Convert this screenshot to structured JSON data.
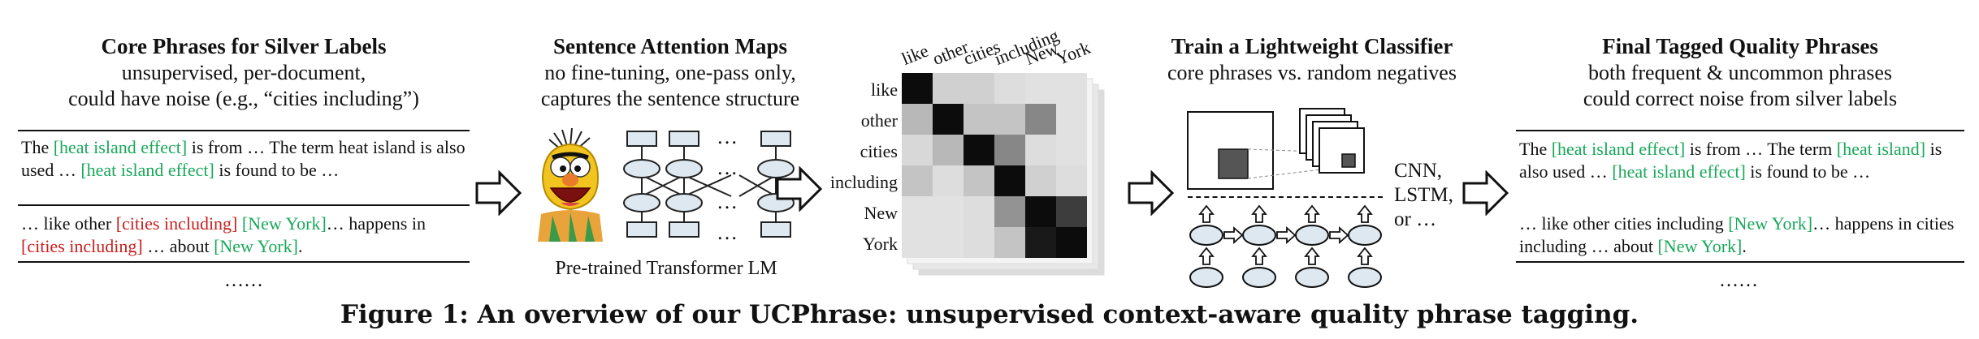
{
  "panel1": {
    "title": "Core Phrases for Silver Labels",
    "sub1": "unsupervised, per-document,",
    "sub2": "could have noise (e.g., “cities including”)",
    "doc1": {
      "t1": "The ",
      "g1": "[heat island effect]",
      "t2": " is from … The term heat island is also used … ",
      "g2": "[heat island effect]",
      "t3": " is found to be …"
    },
    "doc2": {
      "t1": "… like other ",
      "r1": "[cities including]",
      "t2": " ",
      "g1": "[New York]",
      "t3": "… happens in ",
      "r2": "[cities including]",
      "t4": " …  about ",
      "g2": "[New York]",
      "t5": "."
    },
    "ellipsis": "……"
  },
  "panel2": {
    "title": "Sentence Attention Maps",
    "sub1": "no fine-tuning, one-pass only,",
    "sub2": "captures the sentence structure",
    "caption": "Pre-trained Transformer LM",
    "dots": "…"
  },
  "heatmap": {
    "tokens": [
      "like",
      "other",
      "cities",
      "including",
      "New",
      "York"
    ],
    "matrix": [
      [
        0.95,
        0.15,
        0.15,
        0.1,
        0.08,
        0.08
      ],
      [
        0.25,
        0.95,
        0.2,
        0.2,
        0.45,
        0.08
      ],
      [
        0.12,
        0.25,
        0.95,
        0.45,
        0.1,
        0.08
      ],
      [
        0.2,
        0.1,
        0.2,
        0.95,
        0.15,
        0.1
      ],
      [
        0.08,
        0.08,
        0.1,
        0.4,
        0.95,
        0.75
      ],
      [
        0.08,
        0.08,
        0.1,
        0.2,
        0.9,
        0.95
      ]
    ]
  },
  "panel3": {
    "title": "Train a Lightweight Classifier",
    "sub1": "core phrases vs. random negatives",
    "models1": "CNN,",
    "models2": "LSTM,",
    "models3": "or …"
  },
  "panel4": {
    "title": "Final Tagged Quality Phrases",
    "sub1": "both frequent & uncommon phrases",
    "sub2": "could correct noise from silver labels",
    "doc1": {
      "t1": "The ",
      "g1": "[heat island effect]",
      "t2": " is from … The term  ",
      "g2": "[heat island]",
      "t3": " is also used … ",
      "g3": "[heat island effect]",
      "t4": " is found to be …"
    },
    "doc2": {
      "t1": "… like other cities including ",
      "g1": "[New York]",
      "t2": "… happens in cities including …  about ",
      "g2": "[New York]",
      "t3": "."
    },
    "ellipsis": "……"
  },
  "figure_caption": "Figure 1: An overview of our UCPhrase: unsupervised context-aware quality phrase tagging.",
  "colors": {
    "phrase_good": "#19a85a",
    "phrase_noise": "#c8201f",
    "node_fill": "#dde8f0"
  }
}
